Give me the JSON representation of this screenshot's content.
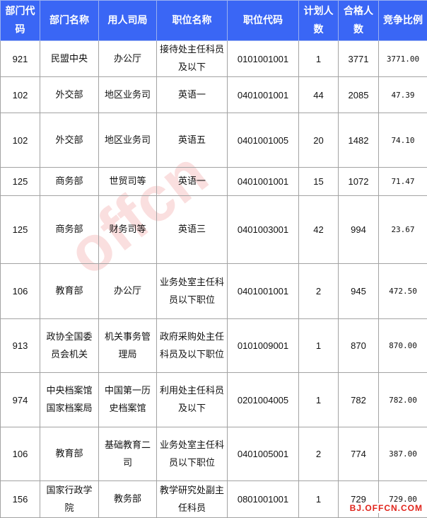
{
  "table": {
    "headers": [
      "部门代码",
      "部门名称",
      "用人司局",
      "职位名称",
      "职位代码",
      "计划人数",
      "合格人数",
      "竞争比例"
    ],
    "rows": [
      [
        "921",
        "民盟中央",
        "办公厅",
        "接待处主任科员及以下",
        "0101001001",
        "1",
        "3771",
        "3771.00"
      ],
      [
        "102",
        "外交部",
        "地区业务司",
        "英语一",
        "0401001001",
        "44",
        "2085",
        "47.39"
      ],
      [
        "102",
        "外交部",
        "地区业务司",
        "英语五",
        "0401001005",
        "20",
        "1482",
        "74.10"
      ],
      [
        "125",
        "商务部",
        "世贸司等",
        "英语一",
        "0401001001",
        "15",
        "1072",
        "71.47"
      ],
      [
        "125",
        "商务部",
        "财务司等",
        "英语三",
        "0401003001",
        "42",
        "994",
        "23.67"
      ],
      [
        "106",
        "教育部",
        "办公厅",
        "业务处室主任科员以下职位",
        "0401001001",
        "2",
        "945",
        "472.50"
      ],
      [
        "913",
        "政协全国委员会机关",
        "机关事务管理局",
        "政府采购处主任科员及以下职位",
        "0101009001",
        "1",
        "870",
        "870.00"
      ],
      [
        "974",
        "中央档案馆国家档案局",
        "中国第一历史档案馆",
        "利用处主任科员及以下",
        "0201004005",
        "1",
        "782",
        "782.00"
      ],
      [
        "106",
        "教育部",
        "基础教育二司",
        "业务处室主任科员以下职位",
        "0401005001",
        "2",
        "774",
        "387.00"
      ],
      [
        "156",
        "国家行政学院",
        "教务部",
        "教学研究处副主任科员",
        "0801001001",
        "1",
        "729",
        "729.00"
      ]
    ]
  },
  "watermark": {
    "site": "BJ.OFFCN.COM",
    "logo": "offcn 中公教育"
  },
  "colors": {
    "header_bg": "#3a66f5",
    "header_text": "#ffffff",
    "watermark": "#e0241b"
  }
}
